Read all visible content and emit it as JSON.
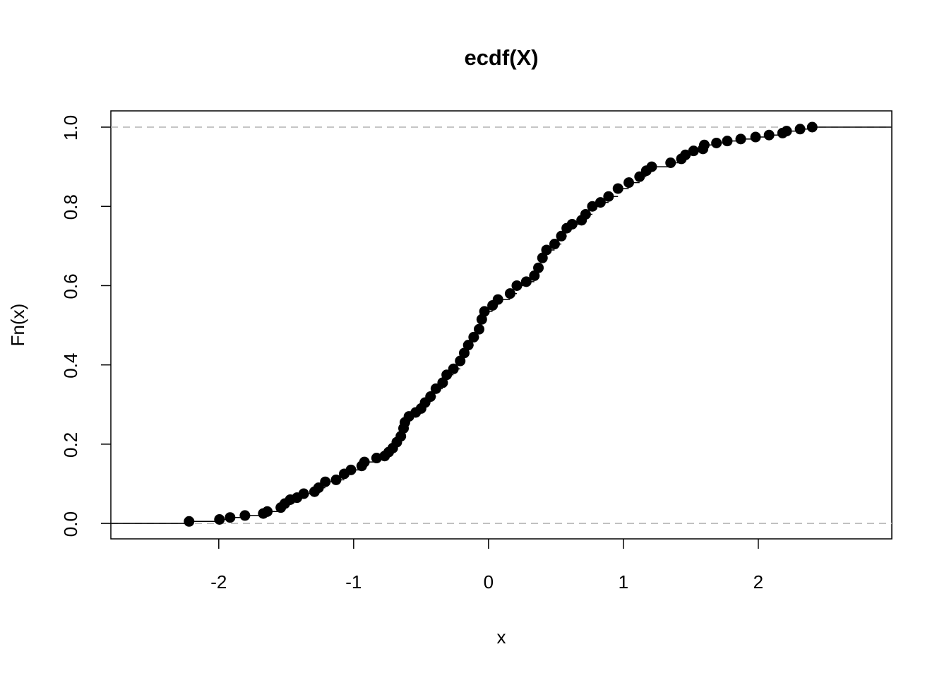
{
  "chart_data": {
    "type": "step",
    "title": "ecdf(X)",
    "x_label": "x",
    "y_label": "Fn(x)",
    "xlim": [
      -2.8,
      2.99
    ],
    "ylim": [
      -0.039,
      1.041
    ],
    "xticks": [
      -2,
      -1,
      0,
      1,
      2
    ],
    "yticks": [
      {
        "value": 0,
        "label": "0.0"
      },
      {
        "value": 0.2,
        "label": "0.2"
      },
      {
        "value": 0.4,
        "label": "0.4"
      },
      {
        "value": 0.6,
        "label": "0.6"
      },
      {
        "value": 0.8,
        "label": "0.8"
      },
      {
        "value": 1,
        "label": "1.0"
      }
    ],
    "reference_lines": [
      0,
      1
    ],
    "reference_color": "#b3b3b3",
    "color": "#000000",
    "x": [
      -2.22,
      -1.995,
      -1.916,
      -1.806,
      -1.67,
      -1.64,
      -1.54,
      -1.51,
      -1.47,
      -1.42,
      -1.37,
      -1.29,
      -1.26,
      -1.21,
      -1.13,
      -1.07,
      -1.02,
      -0.94,
      -0.92,
      -0.83,
      -0.77,
      -0.74,
      -0.71,
      -0.68,
      -0.65,
      -0.63,
      -0.62,
      -0.59,
      -0.54,
      -0.5,
      -0.47,
      -0.43,
      -0.39,
      -0.34,
      -0.31,
      -0.26,
      -0.21,
      -0.18,
      -0.15,
      -0.11,
      -0.07,
      -0.05,
      -0.03,
      0.03,
      0.07,
      0.16,
      0.21,
      0.28,
      0.34,
      0.37,
      0.4,
      0.43,
      0.49,
      0.54,
      0.58,
      0.62,
      0.69,
      0.72,
      0.77,
      0.83,
      0.89,
      0.96,
      1.04,
      1.12,
      1.17,
      1.21,
      1.35,
      1.43,
      1.46,
      1.52,
      1.59,
      1.6,
      1.69,
      1.77,
      1.87,
      1.98,
      2.08,
      2.18,
      2.21,
      2.31,
      2.4
    ],
    "values": [
      0.005,
      0.01,
      0.015,
      0.02,
      0.025,
      0.03,
      0.04,
      0.05,
      0.06,
      0.065,
      0.075,
      0.08,
      0.09,
      0.105,
      0.11,
      0.125,
      0.135,
      0.145,
      0.155,
      0.165,
      0.17,
      0.18,
      0.19,
      0.205,
      0.22,
      0.24,
      0.255,
      0.27,
      0.28,
      0.29,
      0.305,
      0.32,
      0.34,
      0.355,
      0.375,
      0.39,
      0.41,
      0.43,
      0.45,
      0.47,
      0.49,
      0.515,
      0.535,
      0.55,
      0.565,
      0.58,
      0.6,
      0.61,
      0.625,
      0.645,
      0.67,
      0.69,
      0.705,
      0.725,
      0.745,
      0.755,
      0.765,
      0.78,
      0.8,
      0.81,
      0.825,
      0.845,
      0.86,
      0.875,
      0.89,
      0.9,
      0.91,
      0.92,
      0.93,
      0.94,
      0.945,
      0.955,
      0.96,
      0.965,
      0.97,
      0.975,
      0.98,
      0.985,
      0.99,
      0.995,
      1.0
    ]
  }
}
